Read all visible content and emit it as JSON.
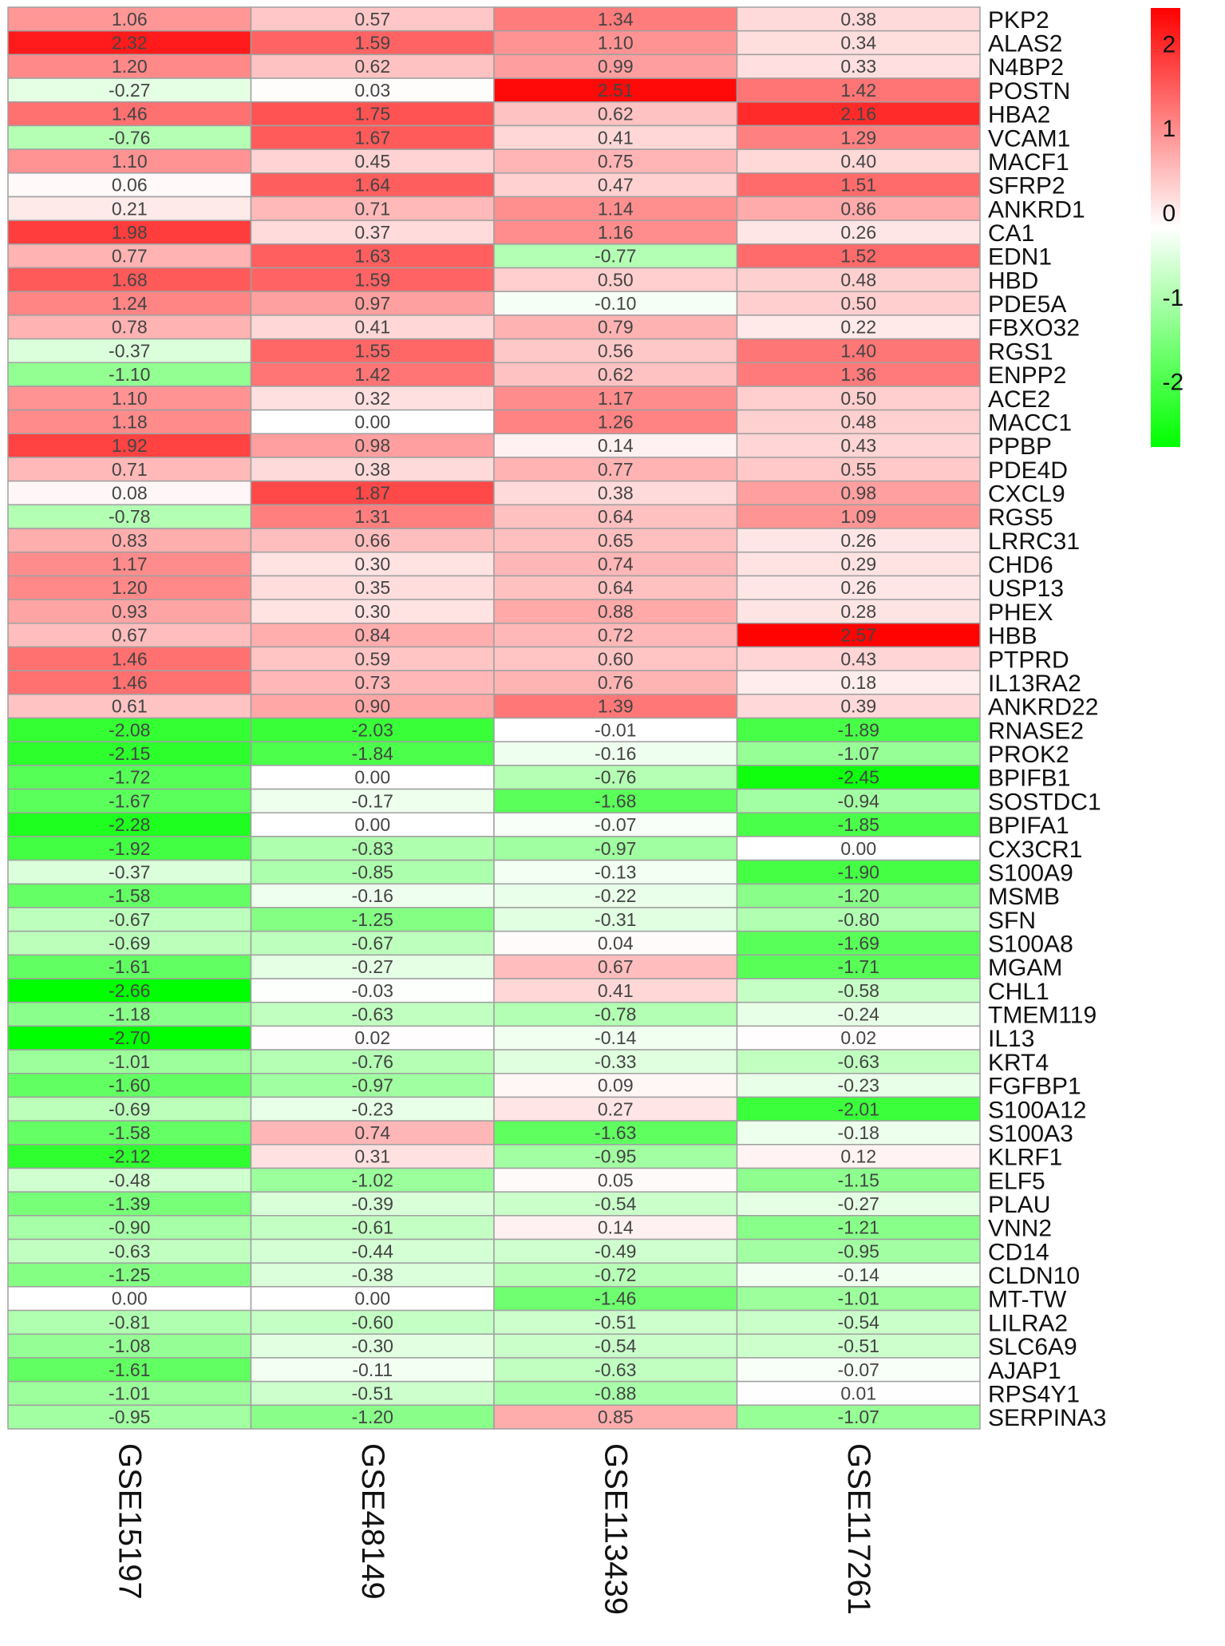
{
  "chart_data": {
    "type": "heatmap",
    "columns": [
      "GSE15197",
      "GSE48149",
      "GSE113439",
      "GSE117261"
    ],
    "rows": [
      "PKP2",
      "ALAS2",
      "N4BP2",
      "POSTN",
      "HBA2",
      "VCAM1",
      "MACF1",
      "SFRP2",
      "ANKRD1",
      "CA1",
      "EDN1",
      "HBD",
      "PDE5A",
      "FBXO32",
      "RGS1",
      "ENPP2",
      "ACE2",
      "MACC1",
      "PPBP",
      "PDE4D",
      "CXCL9",
      "RGS5",
      "LRRC31",
      "CHD6",
      "USP13",
      "PHEX",
      "HBB",
      "PTPRD",
      "IL13RA2",
      "ANKRD22",
      "RNASE2",
      "PROK2",
      "BPIFB1",
      "SOSTDC1",
      "BPIFA1",
      "CX3CR1",
      "S100A9",
      "MSMB",
      "SFN",
      "S100A8",
      "MGAM",
      "CHL1",
      "TMEM119",
      "IL13",
      "KRT4",
      "FGFBP1",
      "S100A12",
      "S100A3",
      "KLRF1",
      "ELF5",
      "PLAU",
      "VNN2",
      "CD14",
      "CLDN10",
      "MT-TW",
      "LILRA2",
      "SLC6A9",
      "AJAP1",
      "RPS4Y1",
      "SERPINA3"
    ],
    "values": [
      [
        "1.06",
        "0.57",
        "1.34",
        "0.38"
      ],
      [
        "2.32",
        "1.59",
        "1.10",
        "0.34"
      ],
      [
        "1.20",
        "0.62",
        "0.99",
        "0.33"
      ],
      [
        "-0.27",
        "0.03",
        "2.51",
        "1.42"
      ],
      [
        "1.46",
        "1.75",
        "0.62",
        "2.16"
      ],
      [
        "-0.76",
        "1.67",
        "0.41",
        "1.29"
      ],
      [
        "1.10",
        "0.45",
        "0.75",
        "0.40"
      ],
      [
        "0.06",
        "1.64",
        "0.47",
        "1.51"
      ],
      [
        "0.21",
        "0.71",
        "1.14",
        "0.86"
      ],
      [
        "1.98",
        "0.37",
        "1.16",
        "0.26"
      ],
      [
        "0.77",
        "1.63",
        "-0.77",
        "1.52"
      ],
      [
        "1.68",
        "1.59",
        "0.50",
        "0.48"
      ],
      [
        "1.24",
        "0.97",
        "-0.10",
        "0.50"
      ],
      [
        "0.78",
        "0.41",
        "0.79",
        "0.22"
      ],
      [
        "-0.37",
        "1.55",
        "0.56",
        "1.40"
      ],
      [
        "-1.10",
        "1.42",
        "0.62",
        "1.36"
      ],
      [
        "1.10",
        "0.32",
        "1.17",
        "0.50"
      ],
      [
        "1.18",
        "0.00",
        "1.26",
        "0.48"
      ],
      [
        "1.92",
        "0.98",
        "0.14",
        "0.43"
      ],
      [
        "0.71",
        "0.38",
        "0.77",
        "0.55"
      ],
      [
        "0.08",
        "1.87",
        "0.38",
        "0.98"
      ],
      [
        "-0.78",
        "1.31",
        "0.64",
        "1.09"
      ],
      [
        "0.83",
        "0.66",
        "0.65",
        "0.26"
      ],
      [
        "1.17",
        "0.30",
        "0.74",
        "0.29"
      ],
      [
        "1.20",
        "0.35",
        "0.64",
        "0.26"
      ],
      [
        "0.93",
        "0.30",
        "0.88",
        "0.28"
      ],
      [
        "0.67",
        "0.84",
        "0.72",
        "2.57"
      ],
      [
        "1.46",
        "0.59",
        "0.60",
        "0.43"
      ],
      [
        "1.46",
        "0.73",
        "0.76",
        "0.18"
      ],
      [
        "0.61",
        "0.90",
        "1.39",
        "0.39"
      ],
      [
        "-2.08",
        "-2.03",
        "-0.01",
        "-1.89"
      ],
      [
        "-2.15",
        "-1.84",
        "-0.16",
        "-1.07"
      ],
      [
        "-1.72",
        "0.00",
        "-0.76",
        "-2.45"
      ],
      [
        "-1.67",
        "-0.17",
        "-1.68",
        "-0.94"
      ],
      [
        "-2.28",
        "0.00",
        "-0.07",
        "-1.85"
      ],
      [
        "-1.92",
        "-0.83",
        "-0.97",
        "0.00"
      ],
      [
        "-0.37",
        "-0.85",
        "-0.13",
        "-1.90"
      ],
      [
        "-1.58",
        "-0.16",
        "-0.22",
        "-1.20"
      ],
      [
        "-0.67",
        "-1.25",
        "-0.31",
        "-0.80"
      ],
      [
        "-0.69",
        "-0.67",
        "0.04",
        "-1.69"
      ],
      [
        "-1.61",
        "-0.27",
        "0.67",
        "-1.71"
      ],
      [
        "-2.66",
        "-0.03",
        "0.41",
        "-0.58"
      ],
      [
        "-1.18",
        "-0.63",
        "-0.78",
        "-0.24"
      ],
      [
        "-2.70",
        "0.02",
        "-0.14",
        "0.02"
      ],
      [
        "-1.01",
        "-0.76",
        "-0.33",
        "-0.63"
      ],
      [
        "-1.60",
        "-0.97",
        "0.09",
        "-0.23"
      ],
      [
        "-0.69",
        "-0.23",
        "0.27",
        "-2.01"
      ],
      [
        "-1.58",
        "0.74",
        "-1.63",
        "-0.18"
      ],
      [
        "-2.12",
        "0.31",
        "-0.95",
        "0.12"
      ],
      [
        "-0.48",
        "-1.02",
        "0.05",
        "-1.15"
      ],
      [
        "-1.39",
        "-0.39",
        "-0.54",
        "-0.27"
      ],
      [
        "-0.90",
        "-0.61",
        "0.14",
        "-1.21"
      ],
      [
        "-0.63",
        "-0.44",
        "-0.49",
        "-0.95"
      ],
      [
        "-1.25",
        "-0.38",
        "-0.72",
        "-0.14"
      ],
      [
        "0.00",
        "0.00",
        "-1.46",
        "-1.01"
      ],
      [
        "-0.81",
        "-0.60",
        "-0.51",
        "-0.54"
      ],
      [
        "-1.08",
        "-0.30",
        "-0.54",
        "-0.51"
      ],
      [
        "-1.61",
        "-0.11",
        "-0.63",
        "-0.07"
      ],
      [
        "-1.01",
        "-0.51",
        "-0.88",
        "0.01"
      ],
      [
        "-0.95",
        "-1.20",
        "0.85",
        "-1.07"
      ]
    ],
    "color_scale": {
      "min": -2.6,
      "max": 2.6,
      "low_color": "#00ff00",
      "mid_color": "#ffffff",
      "high_color": "#ff0000"
    },
    "legend": {
      "position": "top-right",
      "ticks": [
        "2",
        "1",
        "0",
        "-1",
        "-2"
      ],
      "tick_values": [
        2,
        1,
        0,
        -1,
        -2
      ]
    },
    "grid_color": "#a0a0a0"
  }
}
